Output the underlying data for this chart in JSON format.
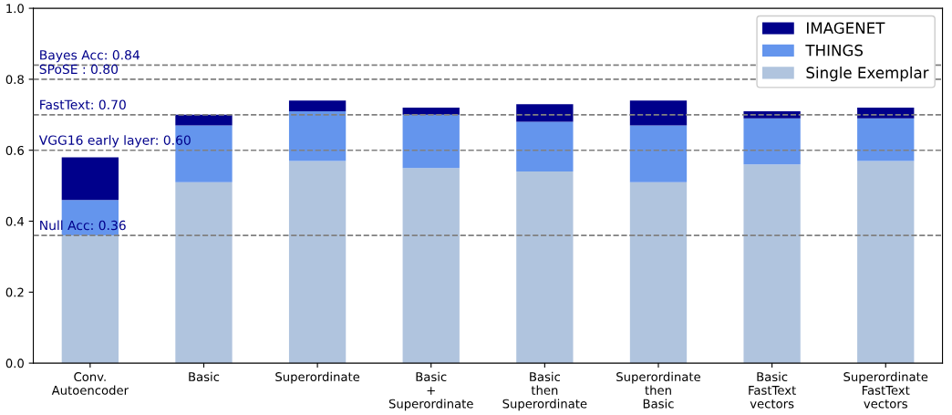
{
  "chart_data": {
    "type": "bar",
    "stacked": true,
    "categories": [
      "Conv.\nAutoencoder",
      "Basic",
      "Superordinate",
      "Basic\n+\nSuperordinate",
      "Basic\nthen\nSuperordinate",
      "Superordinate\nthen\nBasic",
      "Basic\nFastText\nvectors",
      "Superordinate\nFastText\nvectors"
    ],
    "series": [
      {
        "name": "Single Exemplar",
        "color": "#b0c4de",
        "values": [
          0.36,
          0.51,
          0.57,
          0.55,
          0.54,
          0.51,
          0.56,
          0.57
        ]
      },
      {
        "name": "THINGS",
        "color": "#6495ed",
        "values": [
          0.1,
          0.16,
          0.14,
          0.15,
          0.14,
          0.16,
          0.13,
          0.12
        ]
      },
      {
        "name": "IMAGENET",
        "color": "#00008b",
        "values": [
          0.12,
          0.03,
          0.03,
          0.02,
          0.05,
          0.07,
          0.02,
          0.03
        ]
      }
    ],
    "ylim": [
      0,
      1.0
    ],
    "yticks": [
      {
        "value": 0,
        "label": "0.0"
      },
      {
        "value": 0.2,
        "label": "0.2"
      },
      {
        "value": 0.4,
        "label": "0.4"
      },
      {
        "value": 0.6,
        "label": "0.6"
      },
      {
        "value": 0.8,
        "label": "0.8"
      },
      {
        "value": 1.0,
        "label": "1.0"
      }
    ],
    "ref_lines": [
      {
        "axis": "y",
        "value": 0.84,
        "label": "Bayes Acc: 0.84",
        "color": "#808080",
        "line_style": "dashed"
      },
      {
        "axis": "y",
        "value": 0.8,
        "label": "SPoSE : 0.80",
        "color": "#808080",
        "line_style": "dashed"
      },
      {
        "axis": "y",
        "value": 0.7,
        "label": "FastText: 0.70",
        "color": "#808080",
        "line_style": "dashed"
      },
      {
        "axis": "y",
        "value": 0.6,
        "label": "VGG16 early layer: 0.60",
        "color": "#808080",
        "line_style": "dashed"
      },
      {
        "axis": "y",
        "value": 0.36,
        "label": "Null Acc: 0.36",
        "color": "#808080",
        "line_style": "dashed"
      }
    ],
    "legend": "top right",
    "grid": false
  }
}
